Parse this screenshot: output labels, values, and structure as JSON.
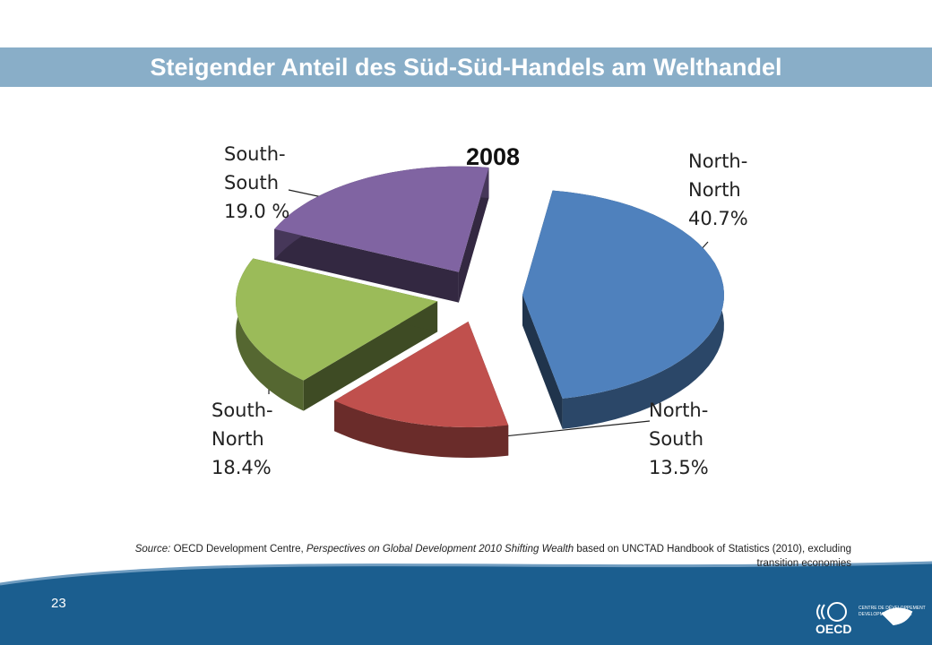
{
  "slide_title": "Steigender Anteil des Süd-Süd-Handels am Welthandel",
  "chart_data": {
    "type": "pie",
    "title": "2008",
    "categories": [
      "North-North",
      "North-South",
      "South-North",
      "South-South"
    ],
    "values": [
      40.7,
      13.5,
      18.4,
      19.0
    ],
    "value_labels": [
      "40.7%",
      "13.5%",
      "18.4%",
      "19.0 %"
    ],
    "colors": [
      "#4f81bd",
      "#c0504d",
      "#9bbb59",
      "#8064a2"
    ]
  },
  "source": {
    "parts": [
      {
        "text": "Source:",
        "italic": true
      },
      {
        "text": " OECD Development Centre, ",
        "italic": false
      },
      {
        "text": "Perspectives on Global Development 2010 Shifting Wealth",
        "italic": true
      },
      {
        "text": "  based on UNCTAD  Handbook of Statistics (2010),  excluding transition economies",
        "italic": false
      }
    ]
  },
  "page_number": "23",
  "logo": {
    "name": "OECD",
    "line1": "CENTRE DE DÉVELOPPEMENT",
    "line2": "DEVELOPMENT CENTRE"
  }
}
